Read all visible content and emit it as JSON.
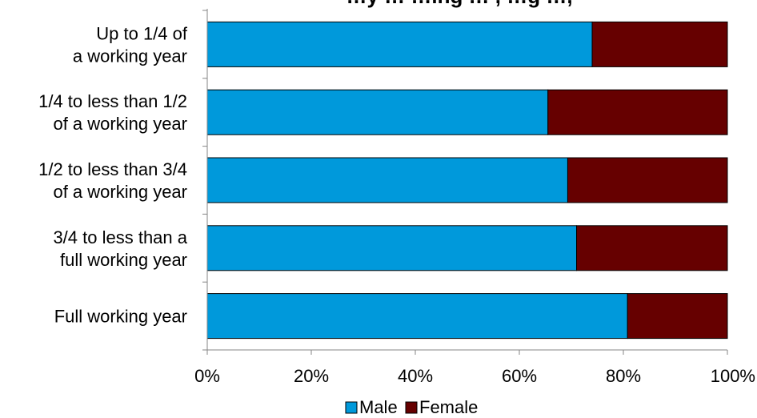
{
  "chart_data": {
    "type": "bar",
    "orientation": "horizontal",
    "stacked": "percent",
    "title": "…y … …ing … , …g …,",
    "categories": [
      [
        "Up to 1/4 of",
        "a working year"
      ],
      [
        "1/4 to less than 1/2",
        "of a working year"
      ],
      [
        "1/2 to less than 3/4",
        "of a working year"
      ],
      [
        "3/4 to less than a",
        "full working year"
      ],
      [
        "Full working year"
      ]
    ],
    "series": [
      {
        "name": "Male",
        "color": "#0099DB",
        "values": [
          74,
          65.5,
          69.3,
          71,
          80.8
        ]
      },
      {
        "name": "Female",
        "color": "#660000",
        "values": [
          26,
          34.5,
          30.7,
          29,
          19.2
        ]
      }
    ],
    "xlim": [
      0,
      100
    ],
    "xticks": [
      "0%",
      "20%",
      "40%",
      "60%",
      "80%",
      "100%"
    ],
    "xlabel": "",
    "ylabel": "",
    "grid": false,
    "legend": {
      "position": "bottom",
      "entries": [
        "Male",
        "Female"
      ]
    }
  }
}
